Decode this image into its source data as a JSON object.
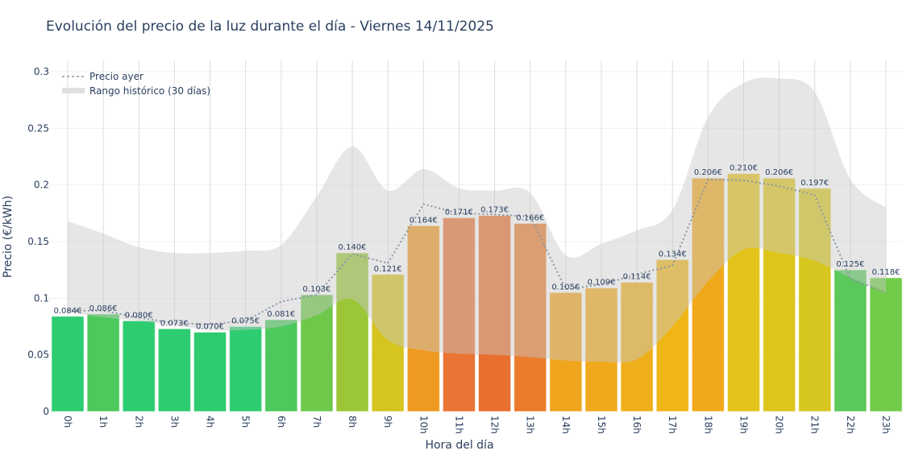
{
  "chart_data": {
    "type": "bar",
    "title": "Evolución del precio de la luz durante el día - Viernes 14/11/2025",
    "xlabel": "Hora del día",
    "ylabel": "Precio (€/kWh)",
    "ylim": [
      0,
      0.3
    ],
    "yticks": [
      "0",
      "0.05",
      "0.1",
      "0.15",
      "0.2",
      "0.25",
      "0.3"
    ],
    "ytick_values": [
      0,
      0.05,
      0.1,
      0.15,
      0.2,
      0.25,
      0.3
    ],
    "grid": true,
    "legend_position": "top-left",
    "categories": [
      "0h",
      "1h",
      "2h",
      "3h",
      "4h",
      "5h",
      "6h",
      "7h",
      "8h",
      "9h",
      "10h",
      "11h",
      "12h",
      "13h",
      "14h",
      "15h",
      "16h",
      "17h",
      "18h",
      "19h",
      "20h",
      "21h",
      "22h",
      "23h"
    ],
    "values": [
      0.084,
      0.086,
      0.08,
      0.073,
      0.07,
      0.075,
      0.081,
      0.103,
      0.14,
      0.121,
      0.164,
      0.171,
      0.173,
      0.166,
      0.105,
      0.109,
      0.114,
      0.134,
      0.206,
      0.21,
      0.206,
      0.197,
      0.125,
      0.118
    ],
    "data_labels": [
      "0.084€",
      "0.086€",
      "0.080€",
      "0.073€",
      "0.070€",
      "0.075€",
      "0.081€",
      "0.103€",
      "0.140€",
      "0.121€",
      "0.164€",
      "0.171€",
      "0.173€",
      "0.166€",
      "0.105€",
      "0.109€",
      "0.114€",
      "0.134€",
      "0.206€",
      "0.210€",
      "0.206€",
      "0.197€",
      "0.125€",
      "0.118€"
    ],
    "bar_colors": [
      "#2ecc71",
      "#4cc95c",
      "#2ecc71",
      "#2ecc71",
      "#2ecc71",
      "#2ecc71",
      "#4cc95c",
      "#6fc84a",
      "#9bc637",
      "#d6c41f",
      "#ef9a20",
      "#ea7433",
      "#e86f2e",
      "#eb7c2c",
      "#f0a51e",
      "#f0a91c",
      "#efaf1b",
      "#f0b616",
      "#f1a91c",
      "#e4c41a",
      "#dec51c",
      "#d8c620",
      "#5ac85a",
      "#72cc4a"
    ],
    "series": [
      {
        "name": "Precio ayer",
        "type": "line",
        "style": "dotted",
        "color": "#8a97a6",
        "values": [
          0.089,
          0.089,
          0.083,
          0.078,
          0.077,
          0.08,
          0.097,
          0.103,
          0.139,
          0.131,
          0.183,
          0.175,
          0.174,
          0.172,
          0.108,
          0.112,
          0.121,
          0.129,
          0.205,
          0.204,
          0.199,
          0.191,
          0.117,
          0.105
        ]
      },
      {
        "name": "Rango histórico (30 días)",
        "type": "area-range",
        "color": "#d3d3d3",
        "upper": [
          0.168,
          0.157,
          0.145,
          0.14,
          0.14,
          0.142,
          0.147,
          0.19,
          0.234,
          0.195,
          0.214,
          0.197,
          0.195,
          0.193,
          0.138,
          0.148,
          0.16,
          0.178,
          0.26,
          0.29,
          0.294,
          0.282,
          0.205,
          0.18
        ],
        "lower": [
          0.088,
          0.083,
          0.08,
          0.076,
          0.072,
          0.072,
          0.075,
          0.085,
          0.099,
          0.063,
          0.054,
          0.051,
          0.05,
          0.048,
          0.045,
          0.044,
          0.046,
          0.075,
          0.115,
          0.143,
          0.14,
          0.133,
          0.118,
          0.105
        ]
      }
    ]
  }
}
